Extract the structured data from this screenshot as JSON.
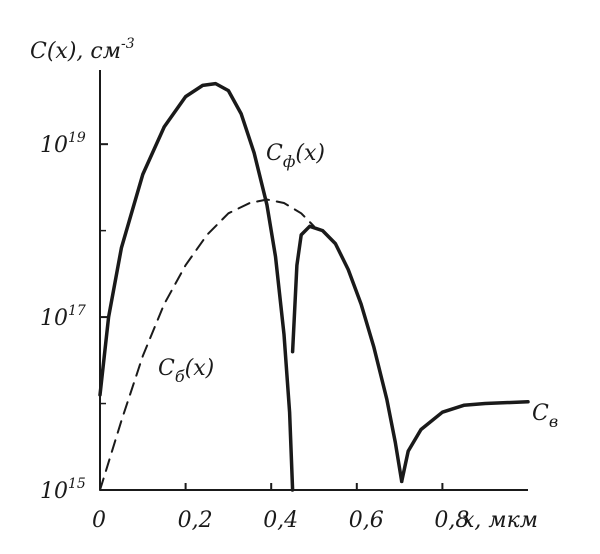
{
  "chart_data": {
    "type": "line",
    "title": "",
    "ylabel": "C(x), см",
    "ylabel_exp": "-3",
    "xlabel": "x, мкм",
    "xlim": [
      0,
      1.0
    ],
    "ylim_log10": [
      15,
      19.8
    ],
    "y_scale": "log",
    "grid": false,
    "x_ticks": [
      {
        "value": 0,
        "label": "0"
      },
      {
        "value": 0.2,
        "label": "0,2"
      },
      {
        "value": 0.4,
        "label": "0,4"
      },
      {
        "value": 0.6,
        "label": "0,6"
      },
      {
        "value": 0.8,
        "label": "0,8"
      }
    ],
    "y_ticks": [
      {
        "value_log10": 15,
        "base": "10",
        "exp": "15"
      },
      {
        "value_log10": 17,
        "base": "10",
        "exp": "17"
      },
      {
        "value_log10": 19,
        "base": "10",
        "exp": "19"
      }
    ],
    "series": [
      {
        "name": "Cф(x)",
        "label_main": "C",
        "label_sub": "ф",
        "label_arg": "(x)",
        "style": "solid",
        "color": "#1a1a1a",
        "segments": [
          [
            {
              "x": 0.0,
              "log10y": 16.1
            },
            {
              "x": 0.02,
              "log10y": 17.0
            },
            {
              "x": 0.05,
              "log10y": 17.8
            },
            {
              "x": 0.1,
              "log10y": 18.65
            },
            {
              "x": 0.15,
              "log10y": 19.2
            },
            {
              "x": 0.2,
              "log10y": 19.55
            },
            {
              "x": 0.24,
              "log10y": 19.68
            },
            {
              "x": 0.27,
              "log10y": 19.7
            },
            {
              "x": 0.3,
              "log10y": 19.62
            },
            {
              "x": 0.33,
              "log10y": 19.35
            },
            {
              "x": 0.36,
              "log10y": 18.9
            },
            {
              "x": 0.39,
              "log10y": 18.3
            },
            {
              "x": 0.41,
              "log10y": 17.7
            },
            {
              "x": 0.43,
              "log10y": 16.8
            },
            {
              "x": 0.443,
              "log10y": 15.9
            },
            {
              "x": 0.45,
              "log10y": 15.0
            }
          ],
          [
            {
              "x": 0.45,
              "log10y": 16.6
            },
            {
              "x": 0.46,
              "log10y": 17.6
            },
            {
              "x": 0.47,
              "log10y": 17.95
            },
            {
              "x": 0.49,
              "log10y": 18.05
            },
            {
              "x": 0.52,
              "log10y": 18.0
            },
            {
              "x": 0.55,
              "log10y": 17.85
            },
            {
              "x": 0.58,
              "log10y": 17.55
            },
            {
              "x": 0.61,
              "log10y": 17.15
            },
            {
              "x": 0.64,
              "log10y": 16.65
            },
            {
              "x": 0.67,
              "log10y": 16.05
            },
            {
              "x": 0.69,
              "log10y": 15.55
            },
            {
              "x": 0.705,
              "log10y": 15.1
            }
          ],
          [
            {
              "x": 0.705,
              "log10y": 15.1
            },
            {
              "x": 0.72,
              "log10y": 15.45
            },
            {
              "x": 0.75,
              "log10y": 15.7
            },
            {
              "x": 0.8,
              "log10y": 15.9
            },
            {
              "x": 0.85,
              "log10y": 15.98
            },
            {
              "x": 0.9,
              "log10y": 16.0
            },
            {
              "x": 1.0,
              "log10y": 16.02
            }
          ]
        ]
      },
      {
        "name": "Cб(x)",
        "label_main": "C",
        "label_sub": "б",
        "label_arg": "(x)",
        "style": "dashed",
        "color": "#1a1a1a",
        "segments": [
          [
            {
              "x": 0.0,
              "log10y": 15.0
            },
            {
              "x": 0.05,
              "log10y": 15.8
            },
            {
              "x": 0.1,
              "log10y": 16.55
            },
            {
              "x": 0.15,
              "log10y": 17.15
            },
            {
              "x": 0.2,
              "log10y": 17.6
            },
            {
              "x": 0.25,
              "log10y": 17.95
            },
            {
              "x": 0.3,
              "log10y": 18.2
            },
            {
              "x": 0.35,
              "log10y": 18.32
            },
            {
              "x": 0.39,
              "log10y": 18.36
            },
            {
              "x": 0.43,
              "log10y": 18.32
            },
            {
              "x": 0.47,
              "log10y": 18.2
            },
            {
              "x": 0.5,
              "log10y": 18.05
            }
          ]
        ]
      }
    ],
    "annotations": [
      {
        "main": "C",
        "sub": "в"
      }
    ]
  }
}
